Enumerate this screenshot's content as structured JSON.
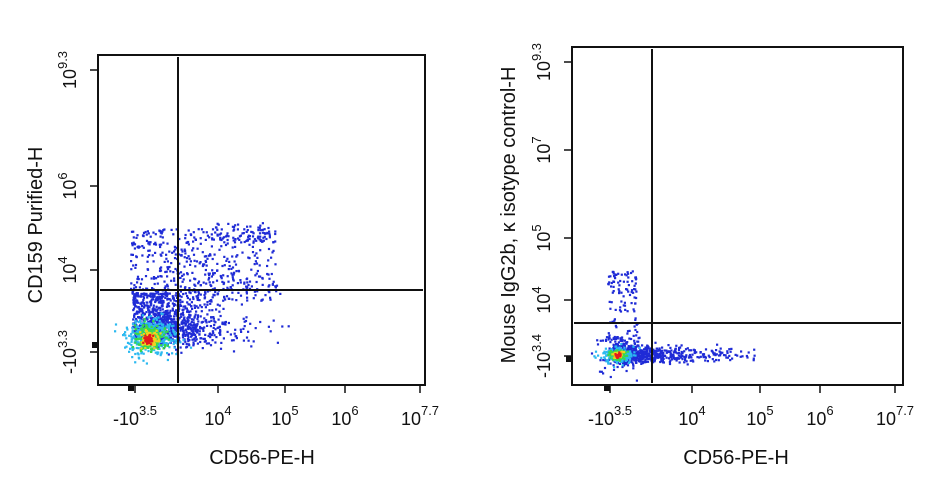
{
  "chart_data": [
    {
      "type": "scatter",
      "xlabel": "CD56-PE-H",
      "ylabel": "CD159 Purified-H",
      "x_scale": "biexponential",
      "y_scale": "biexponential",
      "xticks": [
        {
          "base": "-10",
          "exp": "3.5"
        },
        {
          "base": "10",
          "exp": "4"
        },
        {
          "base": "10",
          "exp": "5"
        },
        {
          "base": "10",
          "exp": "6"
        },
        {
          "base": "10",
          "exp": "7.7"
        }
      ],
      "yticks": [
        {
          "base": "-10",
          "exp": "3.3"
        },
        {
          "base": "10",
          "exp": "4"
        },
        {
          "base": "10",
          "exp": "6"
        },
        {
          "base": "10",
          "exp": "9.3"
        }
      ],
      "gate": {
        "x": 2000,
        "y": 6000
      },
      "grid": false,
      "populations": [
        {
          "color": "#1f2bd6",
          "x": 600,
          "y": -2000,
          "note": "main cluster"
        },
        {
          "color": "#1f2bd6",
          "x": 8000,
          "y": 100000,
          "note": "upper diffuse"
        },
        {
          "color": "#1f2bd6",
          "x": 4000,
          "y": 4000,
          "note": "mid"
        }
      ]
    },
    {
      "type": "scatter",
      "xlabel": "CD56-PE-H",
      "ylabel": "Mouse IgG2b, κ isotype control-H",
      "x_scale": "biexponential",
      "y_scale": "biexponential",
      "xticks": [
        {
          "base": "-10",
          "exp": "3.5"
        },
        {
          "base": "10",
          "exp": "4"
        },
        {
          "base": "10",
          "exp": "5"
        },
        {
          "base": "10",
          "exp": "6"
        },
        {
          "base": "10",
          "exp": "7.7"
        }
      ],
      "yticks": [
        {
          "base": "-10",
          "exp": "3.4"
        },
        {
          "base": "10",
          "exp": "4"
        },
        {
          "base": "10",
          "exp": "5"
        },
        {
          "base": "10",
          "exp": "7"
        },
        {
          "base": "10",
          "exp": "9.3"
        }
      ],
      "gate": {
        "x": 2000,
        "y": 2000
      },
      "grid": false,
      "populations": [
        {
          "color": "#1f2bd6",
          "x": 1000,
          "y": -1500,
          "note": "tight cluster"
        }
      ]
    }
  ],
  "colors": {
    "low": "#1f2bd6",
    "mid1": "#2bb9f0",
    "mid2": "#38d84a",
    "mid3": "#f0d21e",
    "high": "#e31a1c"
  }
}
